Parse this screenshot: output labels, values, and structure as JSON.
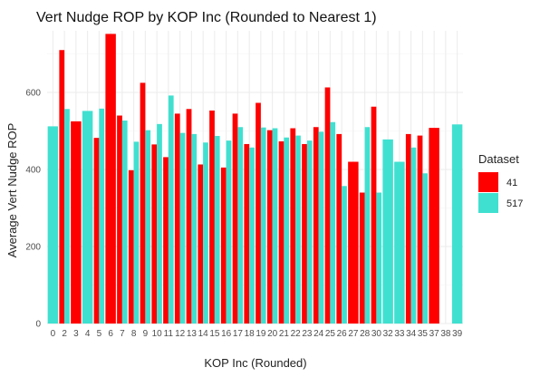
{
  "chart_data": {
    "type": "bar",
    "title": "Vert Nudge ROP by KOP Inc (Rounded to Nearest 1)",
    "xlabel": "KOP Inc (Rounded)",
    "ylabel": "Average Vert Nudge ROP",
    "ylim": [
      0,
      760
    ],
    "yticks": [
      0,
      200,
      400,
      600
    ],
    "grid": true,
    "legend": {
      "title": "Dataset",
      "position": "right"
    },
    "categories": [
      "0",
      "2",
      "3",
      "4",
      "5",
      "6",
      "7",
      "8",
      "9",
      "10",
      "11",
      "12",
      "13",
      "14",
      "15",
      "16",
      "17",
      "18",
      "19",
      "20",
      "21",
      "22",
      "23",
      "24",
      "25",
      "26",
      "27",
      "28",
      "30",
      "32",
      "33",
      "34",
      "35",
      "37",
      "38",
      "39"
    ],
    "series": [
      {
        "name": "41",
        "color": "#ff0000",
        "values": [
          null,
          710,
          525,
          null,
          482,
          752,
          540,
          398,
          625,
          465,
          432,
          545,
          557,
          413,
          553,
          405,
          545,
          466,
          573,
          502,
          473,
          507,
          466,
          510,
          613,
          492,
          420,
          340,
          563,
          null,
          null,
          492,
          488,
          508,
          null,
          null
        ]
      },
      {
        "name": "517",
        "color": "#40e0d0",
        "values": [
          512,
          557,
          null,
          552,
          558,
          null,
          527,
          472,
          502,
          518,
          592,
          495,
          492,
          470,
          487,
          475,
          510,
          457,
          509,
          507,
          483,
          488,
          475,
          498,
          523,
          357,
          null,
          510,
          340,
          478,
          420,
          457,
          390,
          null,
          null,
          517
        ]
      }
    ]
  }
}
